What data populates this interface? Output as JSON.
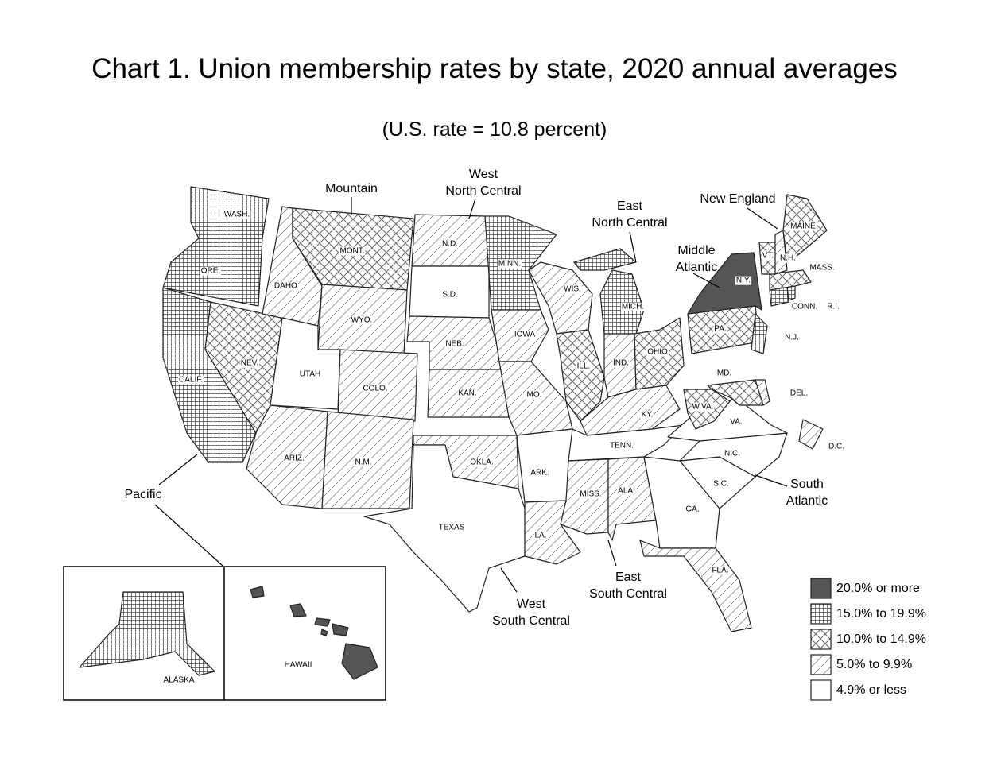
{
  "title": "Chart 1. Union membership rates by state, 2020 annual averages",
  "subtitle": "(U.S. rate = 10.8 percent)",
  "legend": [
    "20.0% or more",
    "15.0% to 19.9%",
    "10.0% to 14.9%",
    "5.0% to 9.9%",
    "4.9% or less"
  ],
  "regions": [
    [
      "Mountain"
    ],
    [
      "West",
      "North Central"
    ],
    [
      "East",
      "North Central"
    ],
    [
      "New England"
    ],
    [
      "Middle",
      "Atlantic"
    ],
    [
      "South",
      "Atlantic"
    ],
    [
      "East",
      "South Central"
    ],
    [
      "West",
      "South Central"
    ],
    [
      "Pacific"
    ]
  ],
  "states": [
    {
      "label": "WASH.",
      "class": 1
    },
    {
      "label": "ORE.",
      "class": 1
    },
    {
      "label": "CALIF.",
      "class": 1
    },
    {
      "label": "NEV.",
      "class": 2
    },
    {
      "label": "IDAHO",
      "class": 3
    },
    {
      "label": "MONT.",
      "class": 2
    },
    {
      "label": "WYO.",
      "class": 3
    },
    {
      "label": "UTAH",
      "class": 4
    },
    {
      "label": "COLO.",
      "class": 3
    },
    {
      "label": "ARIZ.",
      "class": 3
    },
    {
      "label": "N.M.",
      "class": 3
    },
    {
      "label": "N.D.",
      "class": 3
    },
    {
      "label": "S.D.",
      "class": 4
    },
    {
      "label": "NEB.",
      "class": 3
    },
    {
      "label": "KAN.",
      "class": 3
    },
    {
      "label": "OKLA.",
      "class": 3
    },
    {
      "label": "TEXAS",
      "class": 4
    },
    {
      "label": "MINN.",
      "class": 1
    },
    {
      "label": "IOWA",
      "class": 3
    },
    {
      "label": "MO.",
      "class": 3
    },
    {
      "label": "ARK.",
      "class": 4
    },
    {
      "label": "LA.",
      "class": 3
    },
    {
      "label": "WIS.",
      "class": 3
    },
    {
      "label": "ILL.",
      "class": 2
    },
    {
      "label": "MICH.",
      "class": 1
    },
    {
      "label": "IND.",
      "class": 3
    },
    {
      "label": "OHIO",
      "class": 2
    },
    {
      "label": "KY.",
      "class": 3
    },
    {
      "label": "TENN.",
      "class": 4
    },
    {
      "label": "MISS.",
      "class": 3
    },
    {
      "label": "ALA.",
      "class": 3
    },
    {
      "label": "GA.",
      "class": 4
    },
    {
      "label": "FLA.",
      "class": 3
    },
    {
      "label": "S.C.",
      "class": 4
    },
    {
      "label": "N.C.",
      "class": 4
    },
    {
      "label": "VA.",
      "class": 4
    },
    {
      "label": "W.VA.",
      "class": 2
    },
    {
      "label": "MD.",
      "class": 2
    },
    {
      "label": "DEL.",
      "class": 3
    },
    {
      "label": "D.C.",
      "class": 3
    },
    {
      "label": "PA.",
      "class": 2
    },
    {
      "label": "N.Y.",
      "class": 0
    },
    {
      "label": "N.J.",
      "class": 1
    },
    {
      "label": "CONN.",
      "class": 1
    },
    {
      "label": "R.I.",
      "class": 1
    },
    {
      "label": "MASS.",
      "class": 2
    },
    {
      "label": "VT.",
      "class": 2
    },
    {
      "label": "N.H.",
      "class": 3
    },
    {
      "label": "MAINE",
      "class": 2
    },
    {
      "label": "ALASKA",
      "class": 1
    },
    {
      "label": "HAWAII",
      "class": 0
    }
  ]
}
